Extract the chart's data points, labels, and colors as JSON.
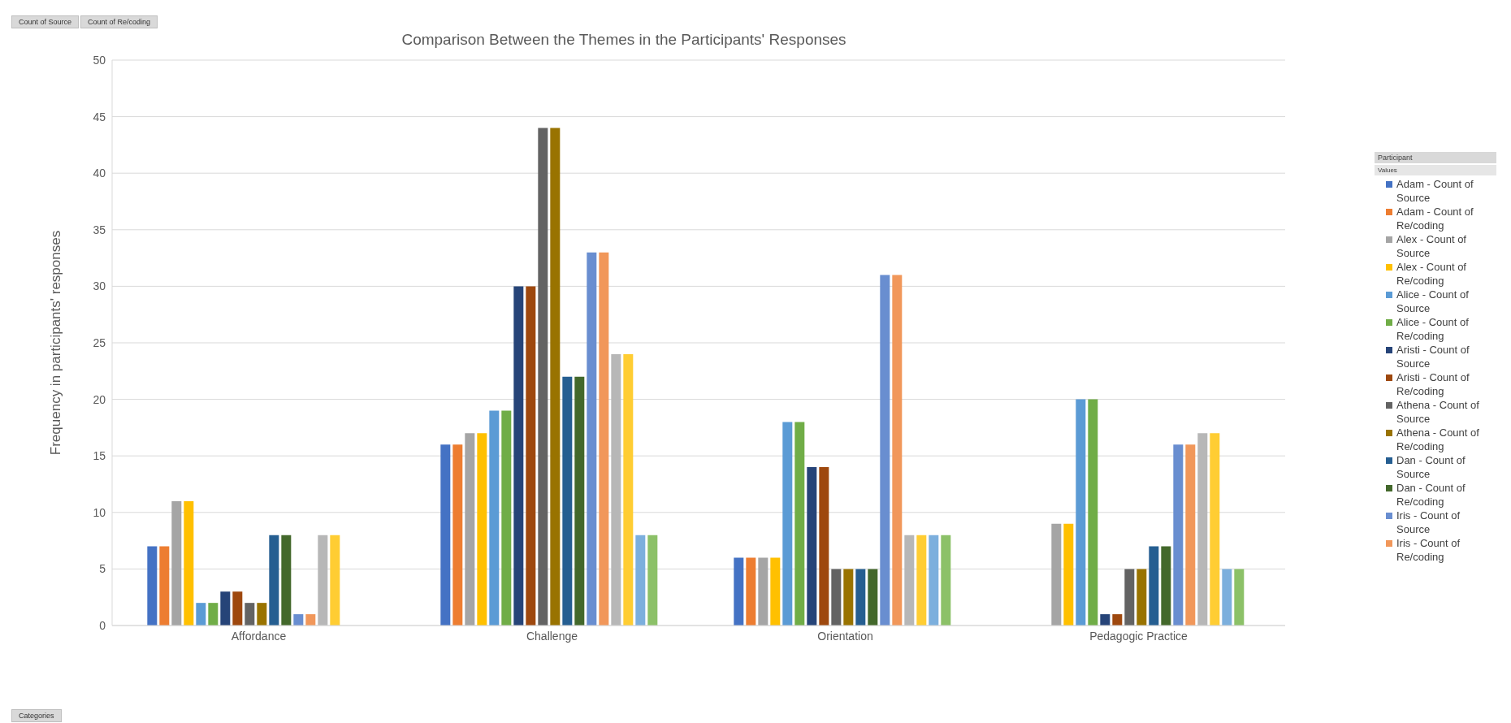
{
  "chart_data": {
    "type": "bar",
    "title": "Comparison Between the Themes in the Participants' Responses",
    "ylabel": "Frequency in participants' responses",
    "legend_title": "Participant",
    "annotations": [
      "Count of Source",
      "Count of Re/coding",
      "Values",
      "Categories"
    ],
    "categories": [
      "Affordance",
      "Challenge",
      "Orientation",
      "Pedagogic Practice"
    ],
    "series": [
      {
        "name": "Adam - Count of Source",
        "color": "#4472c4",
        "values": [
          7,
          16,
          6,
          null
        ]
      },
      {
        "name": "Adam - Count of Re/coding",
        "color": "#ed7d31",
        "values": [
          7,
          16,
          6,
          null
        ]
      },
      {
        "name": "Alex - Count of Source",
        "color": "#a5a5a5",
        "values": [
          11,
          17,
          6,
          9
        ]
      },
      {
        "name": "Alex - Count of Re/coding",
        "color": "#ffc000",
        "values": [
          11,
          17,
          6,
          9
        ]
      },
      {
        "name": "Alice - Count of Source",
        "color": "#5b9bd5",
        "values": [
          2,
          19,
          18,
          20
        ]
      },
      {
        "name": "Alice - Count of Re/coding",
        "color": "#70ad47",
        "values": [
          2,
          19,
          18,
          20
        ]
      },
      {
        "name": "Aristi - Count of Source",
        "color": "#264478",
        "values": [
          3,
          30,
          14,
          1
        ]
      },
      {
        "name": "Aristi - Count of Re/coding",
        "color": "#9e480e",
        "values": [
          3,
          30,
          14,
          1
        ]
      },
      {
        "name": "Athena - Count of Source",
        "color": "#636363",
        "values": [
          2,
          44,
          5,
          5
        ]
      },
      {
        "name": "Athena - Count of Re/coding",
        "color": "#997300",
        "values": [
          2,
          44,
          5,
          5
        ]
      },
      {
        "name": "Dan - Count of Source",
        "color": "#255e91",
        "values": [
          8,
          22,
          5,
          7
        ]
      },
      {
        "name": "Dan - Count of Re/coding",
        "color": "#43682b",
        "values": [
          8,
          22,
          5,
          7
        ]
      },
      {
        "name": "Iris - Count of Source",
        "color": "#698ed0",
        "values": [
          1,
          33,
          31,
          16
        ]
      },
      {
        "name": "Iris - Count of Re/coding",
        "color": "#f1975a",
        "values": [
          1,
          33,
          31,
          16
        ]
      },
      {
        "color": "#b7b7b7",
        "values": [
          8,
          24,
          8,
          17
        ]
      },
      {
        "color": "#ffcd33",
        "values": [
          8,
          24,
          8,
          17
        ]
      },
      {
        "color": "#7cafdd",
        "values": [
          null,
          8,
          8,
          5
        ]
      },
      {
        "color": "#8cc168",
        "values": [
          null,
          8,
          8,
          5
        ]
      }
    ],
    "ylim": [
      0,
      50
    ],
    "yticks": [
      0,
      5,
      10,
      15,
      20,
      25,
      30,
      35,
      40,
      45,
      50
    ],
    "grid": "y",
    "legend": "right"
  }
}
